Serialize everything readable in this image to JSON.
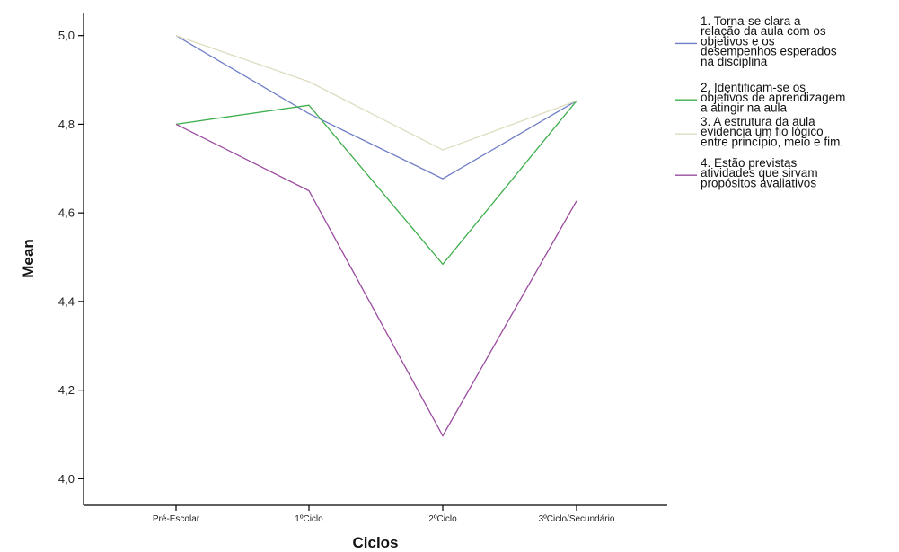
{
  "chart_data": {
    "type": "line",
    "title": "",
    "xlabel": "Ciclos",
    "ylabel": "Mean",
    "categories": [
      "Pré-Escolar",
      "1ºCiclo",
      "2ºCiclo",
      "3ºCiclo/Secundário"
    ],
    "ylim": [
      3.94,
      5.05
    ],
    "yticks": [
      "4,0",
      "4,2",
      "4,4",
      "4,6",
      "4,8",
      "5,0"
    ],
    "ytick_values": [
      4.0,
      4.2,
      4.4,
      4.6,
      4.8,
      5.0
    ],
    "grid": false,
    "legend_position": "right",
    "series": [
      {
        "name": "1. Torna-se clara a relação da aula com os objetivos e os desempenhos esperados na disciplina",
        "legend_lines": [
          "1. Torna-se clara a",
          "relação da aula com os",
          "objetivos e os",
          "desempenhos esperados",
          "na disciplina"
        ],
        "color": "#6f7fc7",
        "values": [
          5.0,
          4.824,
          4.677,
          4.853
        ]
      },
      {
        "name": "2. Identificam-se os objetivos de aprendizagem a atingir na aula",
        "legend_lines": [
          "2. Identificam-se os",
          "objetivos de aprendizagem",
          "a atingir na aula"
        ],
        "color": "#3dae4b",
        "values": [
          4.8,
          4.843,
          4.484,
          4.853
        ]
      },
      {
        "name": "3. A estrutura da aula evidencia um fio lógico entre princípio, meio e fim.",
        "legend_lines": [
          "3. A estrutura da aula",
          "evidencia um fio lógico",
          "entre princípio, meio e fim."
        ],
        "color": "#dedcbf",
        "values": [
          5.0,
          4.896,
          4.742,
          4.853
        ]
      },
      {
        "name": "4. Estão previstas atividades que sirvam propósitos avaliativos",
        "legend_lines": [
          "4. Estão previstas",
          "atividades que sirvam",
          "propósitos avaliativos"
        ],
        "color": "#9a4b9e",
        "values": [
          4.8,
          4.65,
          4.097,
          4.627
        ]
      }
    ]
  }
}
